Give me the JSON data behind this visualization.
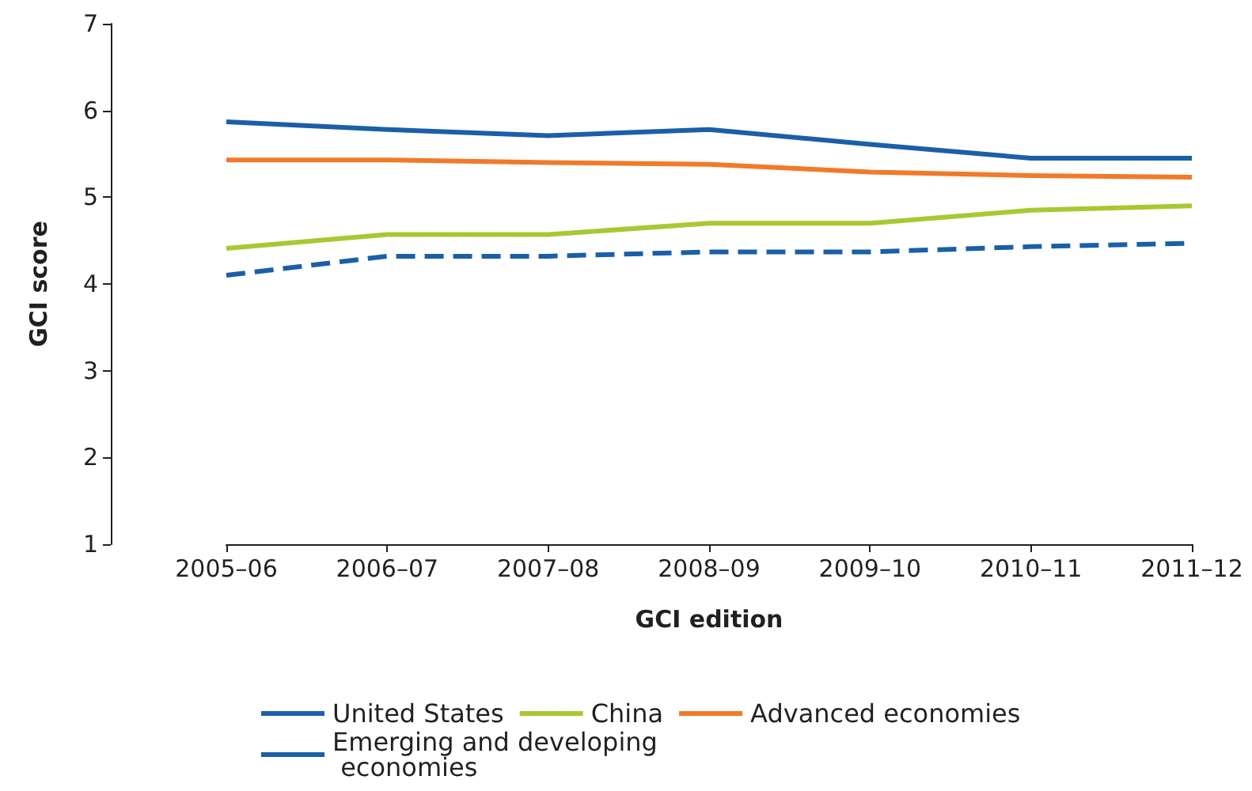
{
  "chart_data": {
    "type": "line",
    "xlabel": "GCI edition",
    "ylabel": "GCI score",
    "categories": [
      "2005–06",
      "2006–07",
      "2007–08",
      "2008–09",
      "2009–10",
      "2010–11",
      "2011–12"
    ],
    "series": [
      {
        "name": "United States",
        "color": "#1a5fa8",
        "values": [
          5.87,
          5.78,
          5.71,
          5.78,
          5.61,
          5.45,
          5.45
        ]
      },
      {
        "name": "Advanced economies",
        "color": "#f07a2a",
        "values": [
          5.43,
          5.43,
          5.4,
          5.38,
          5.29,
          5.25,
          5.23
        ]
      },
      {
        "name": "China",
        "color": "#a8c832",
        "values": [
          4.41,
          4.57,
          4.57,
          4.7,
          4.7,
          4.85,
          4.9
        ]
      },
      {
        "name": "Emerging and developing economies",
        "color": "#1a5fa8",
        "line_style": "dashed",
        "values": [
          4.1,
          4.32,
          4.32,
          4.37,
          4.37,
          4.43,
          4.47
        ]
      }
    ],
    "ylim": [
      1,
      7
    ],
    "yticks": [
      1,
      2,
      3,
      4,
      5,
      6,
      7
    ],
    "grid": false,
    "legend": "bottom",
    "marker": "none"
  }
}
